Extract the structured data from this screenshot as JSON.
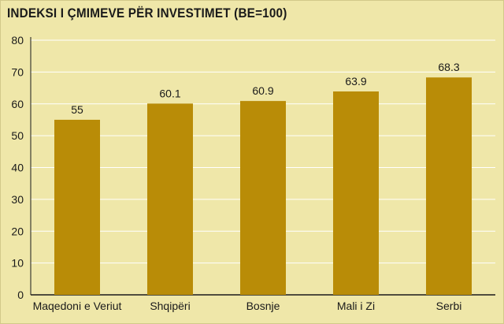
{
  "chart_data": {
    "type": "bar",
    "title": "INDEKSI I ÇMIMEVE PËR INVESTIMET (BE=100)",
    "xlabel": "",
    "ylabel": "",
    "categories": [
      "Maqedoni e Veriut",
      "Shqipëri",
      "Bosnje",
      "Mali i Zi",
      "Serbi"
    ],
    "values": [
      55,
      60.1,
      60.9,
      63.9,
      68.3
    ],
    "value_labels": [
      "55",
      "60.1",
      "60.9",
      "63.9",
      "68.3"
    ],
    "ylim": [
      0,
      80
    ],
    "yticks": [
      "0",
      "10",
      "20",
      "30",
      "40",
      "50",
      "60",
      "70",
      "80"
    ],
    "grid": true,
    "legend": "none",
    "colors": {
      "background": "#efe7a9",
      "bar": "#b98c07",
      "grid": "#ffffff",
      "text": "#1a1a1a"
    }
  }
}
